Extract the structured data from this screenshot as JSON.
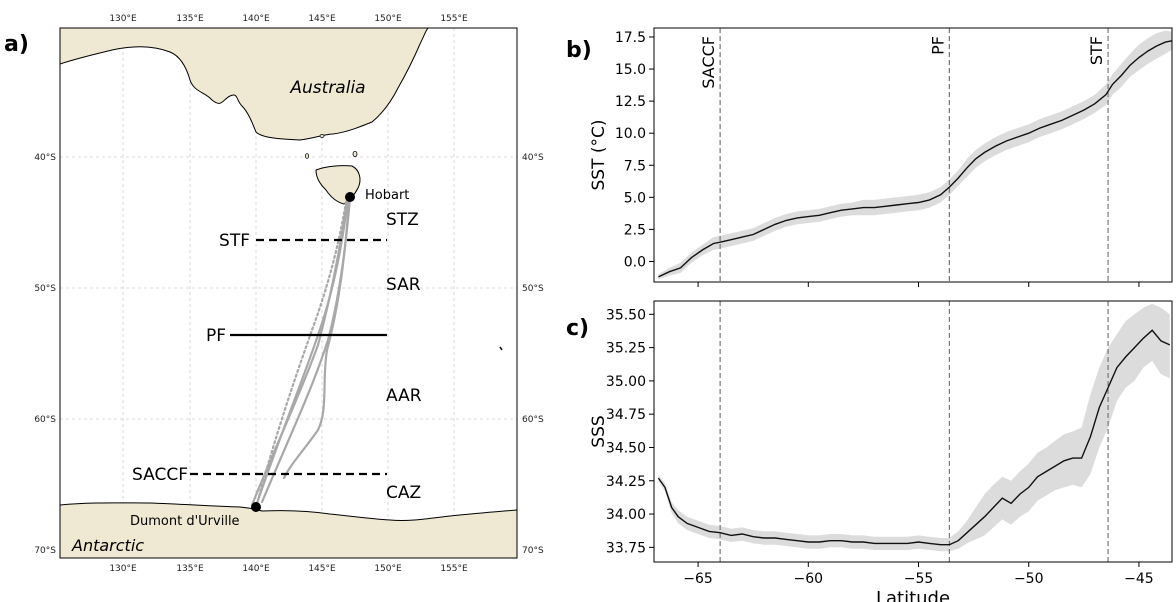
{
  "panels": {
    "a": "a)",
    "b": "b)",
    "c": "c)"
  },
  "map": {
    "lon_ticks": [
      "130°E",
      "135°E",
      "140°E",
      "145°E",
      "150°E",
      "155°E"
    ],
    "lat_ticks": [
      "40°S",
      "50°S",
      "60°S",
      "70°S"
    ],
    "land_color": "#efe8d3",
    "labels": {
      "australia": "Australia",
      "antarctic": "Antarctic",
      "hobart": "Hobart",
      "dumont": "Dumont d'Urville"
    },
    "fronts": [
      {
        "name": "STF",
        "style": "dashed"
      },
      {
        "name": "PF",
        "style": "solid"
      },
      {
        "name": "SACCF",
        "style": "dashed"
      }
    ],
    "zones": [
      "STZ",
      "SAR",
      "AAR",
      "CAZ"
    ]
  },
  "chart_data": [
    {
      "type": "line",
      "panel": "b",
      "ylabel": "SST (°C)",
      "xlim": [
        -67,
        -43.5
      ],
      "ylim": [
        -1.6,
        18.2
      ],
      "yticks": [
        "17.5",
        "15.0",
        "12.5",
        "10.0",
        "7.5",
        "5.0",
        "2.5",
        "0.0"
      ],
      "xticks": [
        "−65",
        "−60",
        "−55",
        "−50",
        "−45"
      ],
      "grid": false,
      "front_lines": [
        {
          "name": "SACCF",
          "x": -64.0
        },
        {
          "name": "PF",
          "x": -53.6
        },
        {
          "name": "STF",
          "x": -46.4
        }
      ],
      "series": [
        {
          "x": [
            -66.8,
            -66.3,
            -65.8,
            -65.3,
            -64.8,
            -64.3,
            -64.0,
            -63.5,
            -63.0,
            -62.5,
            -62.0,
            -61.5,
            -61.0,
            -60.5,
            -60.0,
            -59.5,
            -59.0,
            -58.5,
            -58.0,
            -57.5,
            -57.0,
            -56.5,
            -56.0,
            -55.5,
            -55.0,
            -54.5,
            -54.0,
            -53.6,
            -53.2,
            -52.8,
            -52.4,
            -52.0,
            -51.5,
            -51.0,
            -50.5,
            -50.0,
            -49.5,
            -49.0,
            -48.5,
            -48.0,
            -47.5,
            -47.0,
            -46.5,
            -46.2,
            -45.8,
            -45.4,
            -45.0,
            -44.6,
            -44.2,
            -43.8,
            -43.5
          ],
          "y": [
            -1.2,
            -0.8,
            -0.5,
            0.3,
            0.9,
            1.4,
            1.5,
            1.7,
            1.9,
            2.1,
            2.5,
            2.9,
            3.2,
            3.4,
            3.5,
            3.6,
            3.8,
            4.0,
            4.1,
            4.2,
            4.2,
            4.3,
            4.4,
            4.5,
            4.6,
            4.8,
            5.2,
            5.8,
            6.5,
            7.3,
            8.0,
            8.5,
            9.0,
            9.4,
            9.7,
            10.0,
            10.4,
            10.7,
            11.0,
            11.4,
            11.8,
            12.3,
            13.0,
            13.8,
            14.5,
            15.3,
            15.9,
            16.4,
            16.8,
            17.1,
            17.2
          ],
          "upper": [
            -1.0,
            -0.5,
            -0.1,
            0.7,
            1.3,
            1.9,
            2.0,
            2.2,
            2.4,
            2.6,
            3.0,
            3.4,
            3.7,
            3.9,
            4.0,
            4.1,
            4.3,
            4.5,
            4.6,
            4.8,
            4.8,
            4.9,
            5.0,
            5.1,
            5.2,
            5.4,
            5.8,
            6.4,
            7.1,
            8.0,
            8.7,
            9.2,
            9.7,
            10.1,
            10.4,
            10.7,
            11.1,
            11.4,
            11.7,
            12.1,
            12.5,
            13.0,
            13.8,
            14.6,
            15.4,
            16.2,
            16.9,
            17.4,
            17.8,
            18.0,
            17.9
          ],
          "lower": [
            -1.4,
            -1.1,
            -0.9,
            -0.1,
            0.5,
            0.9,
            1.0,
            1.2,
            1.4,
            1.6,
            2.0,
            2.4,
            2.7,
            2.9,
            3.0,
            3.1,
            3.3,
            3.5,
            3.6,
            3.6,
            3.6,
            3.7,
            3.8,
            3.9,
            4.0,
            4.2,
            4.6,
            5.2,
            5.9,
            6.6,
            7.3,
            7.8,
            8.3,
            8.7,
            9.0,
            9.3,
            9.7,
            10.0,
            10.3,
            10.7,
            11.1,
            11.6,
            12.2,
            13.0,
            13.6,
            14.4,
            14.9,
            15.4,
            15.8,
            16.2,
            16.5
          ]
        }
      ]
    },
    {
      "type": "line",
      "panel": "c",
      "xlabel": "Latitude",
      "ylabel": "SSS",
      "xlim": [
        -67,
        -43.5
      ],
      "ylim": [
        33.64,
        35.6
      ],
      "yticks": [
        "35.50",
        "35.25",
        "35.00",
        "34.75",
        "34.50",
        "34.25",
        "34.00",
        "33.75"
      ],
      "xticks": [
        "−65",
        "−60",
        "−55",
        "−50",
        "−45"
      ],
      "grid": false,
      "front_lines": [
        {
          "name": "SACCF",
          "x": -64.0
        },
        {
          "name": "PF",
          "x": -53.6
        },
        {
          "name": "STF",
          "x": -46.4
        }
      ],
      "series": [
        {
          "x": [
            -66.8,
            -66.5,
            -66.2,
            -65.9,
            -65.5,
            -65.0,
            -64.5,
            -64.0,
            -63.5,
            -63.0,
            -62.5,
            -62.0,
            -61.5,
            -61.0,
            -60.5,
            -60.0,
            -59.5,
            -59.0,
            -58.5,
            -58.0,
            -57.5,
            -57.0,
            -56.5,
            -56.0,
            -55.5,
            -55.0,
            -54.5,
            -54.0,
            -53.6,
            -53.2,
            -52.8,
            -52.4,
            -52.0,
            -51.6,
            -51.2,
            -50.8,
            -50.4,
            -50.0,
            -49.6,
            -49.2,
            -48.8,
            -48.4,
            -48.0,
            -47.6,
            -47.2,
            -46.8,
            -46.4,
            -46.0,
            -45.6,
            -45.2,
            -44.8,
            -44.4,
            -44.0,
            -43.6
          ],
          "y": [
            34.27,
            34.2,
            34.05,
            33.98,
            33.93,
            33.9,
            33.87,
            33.86,
            33.84,
            33.85,
            33.83,
            33.82,
            33.82,
            33.81,
            33.8,
            33.79,
            33.79,
            33.8,
            33.8,
            33.79,
            33.79,
            33.78,
            33.78,
            33.78,
            33.78,
            33.79,
            33.78,
            33.77,
            33.77,
            33.8,
            33.86,
            33.92,
            33.98,
            34.05,
            34.12,
            34.08,
            34.15,
            34.2,
            34.28,
            34.32,
            34.36,
            34.4,
            34.42,
            34.42,
            34.58,
            34.8,
            34.95,
            35.1,
            35.18,
            35.25,
            35.32,
            35.38,
            35.3,
            35.27
          ],
          "upper": [
            34.29,
            34.23,
            34.09,
            34.03,
            33.98,
            33.95,
            33.92,
            33.91,
            33.89,
            33.9,
            33.88,
            33.87,
            33.87,
            33.86,
            33.85,
            33.84,
            33.84,
            33.85,
            33.85,
            33.84,
            33.84,
            33.83,
            33.83,
            33.83,
            33.83,
            33.84,
            33.83,
            33.82,
            33.82,
            33.87,
            33.95,
            34.05,
            34.15,
            34.22,
            34.28,
            34.25,
            34.32,
            34.38,
            34.46,
            34.5,
            34.55,
            34.6,
            34.62,
            34.65,
            34.9,
            35.1,
            35.25,
            35.35,
            35.45,
            35.5,
            35.55,
            35.58,
            35.55,
            35.5
          ],
          "lower": [
            34.25,
            34.17,
            34.01,
            33.93,
            33.88,
            33.85,
            33.82,
            33.81,
            33.79,
            33.8,
            33.78,
            33.77,
            33.77,
            33.76,
            33.75,
            33.74,
            33.74,
            33.75,
            33.75,
            33.74,
            33.74,
            33.73,
            33.73,
            33.73,
            33.73,
            33.74,
            33.73,
            33.72,
            33.72,
            33.74,
            33.78,
            33.81,
            33.84,
            33.9,
            33.96,
            33.92,
            33.98,
            34.02,
            34.1,
            34.14,
            34.18,
            34.2,
            34.22,
            34.2,
            34.3,
            34.5,
            34.65,
            34.85,
            34.95,
            35.0,
            35.1,
            35.15,
            35.05,
            35.02
          ]
        }
      ]
    }
  ]
}
